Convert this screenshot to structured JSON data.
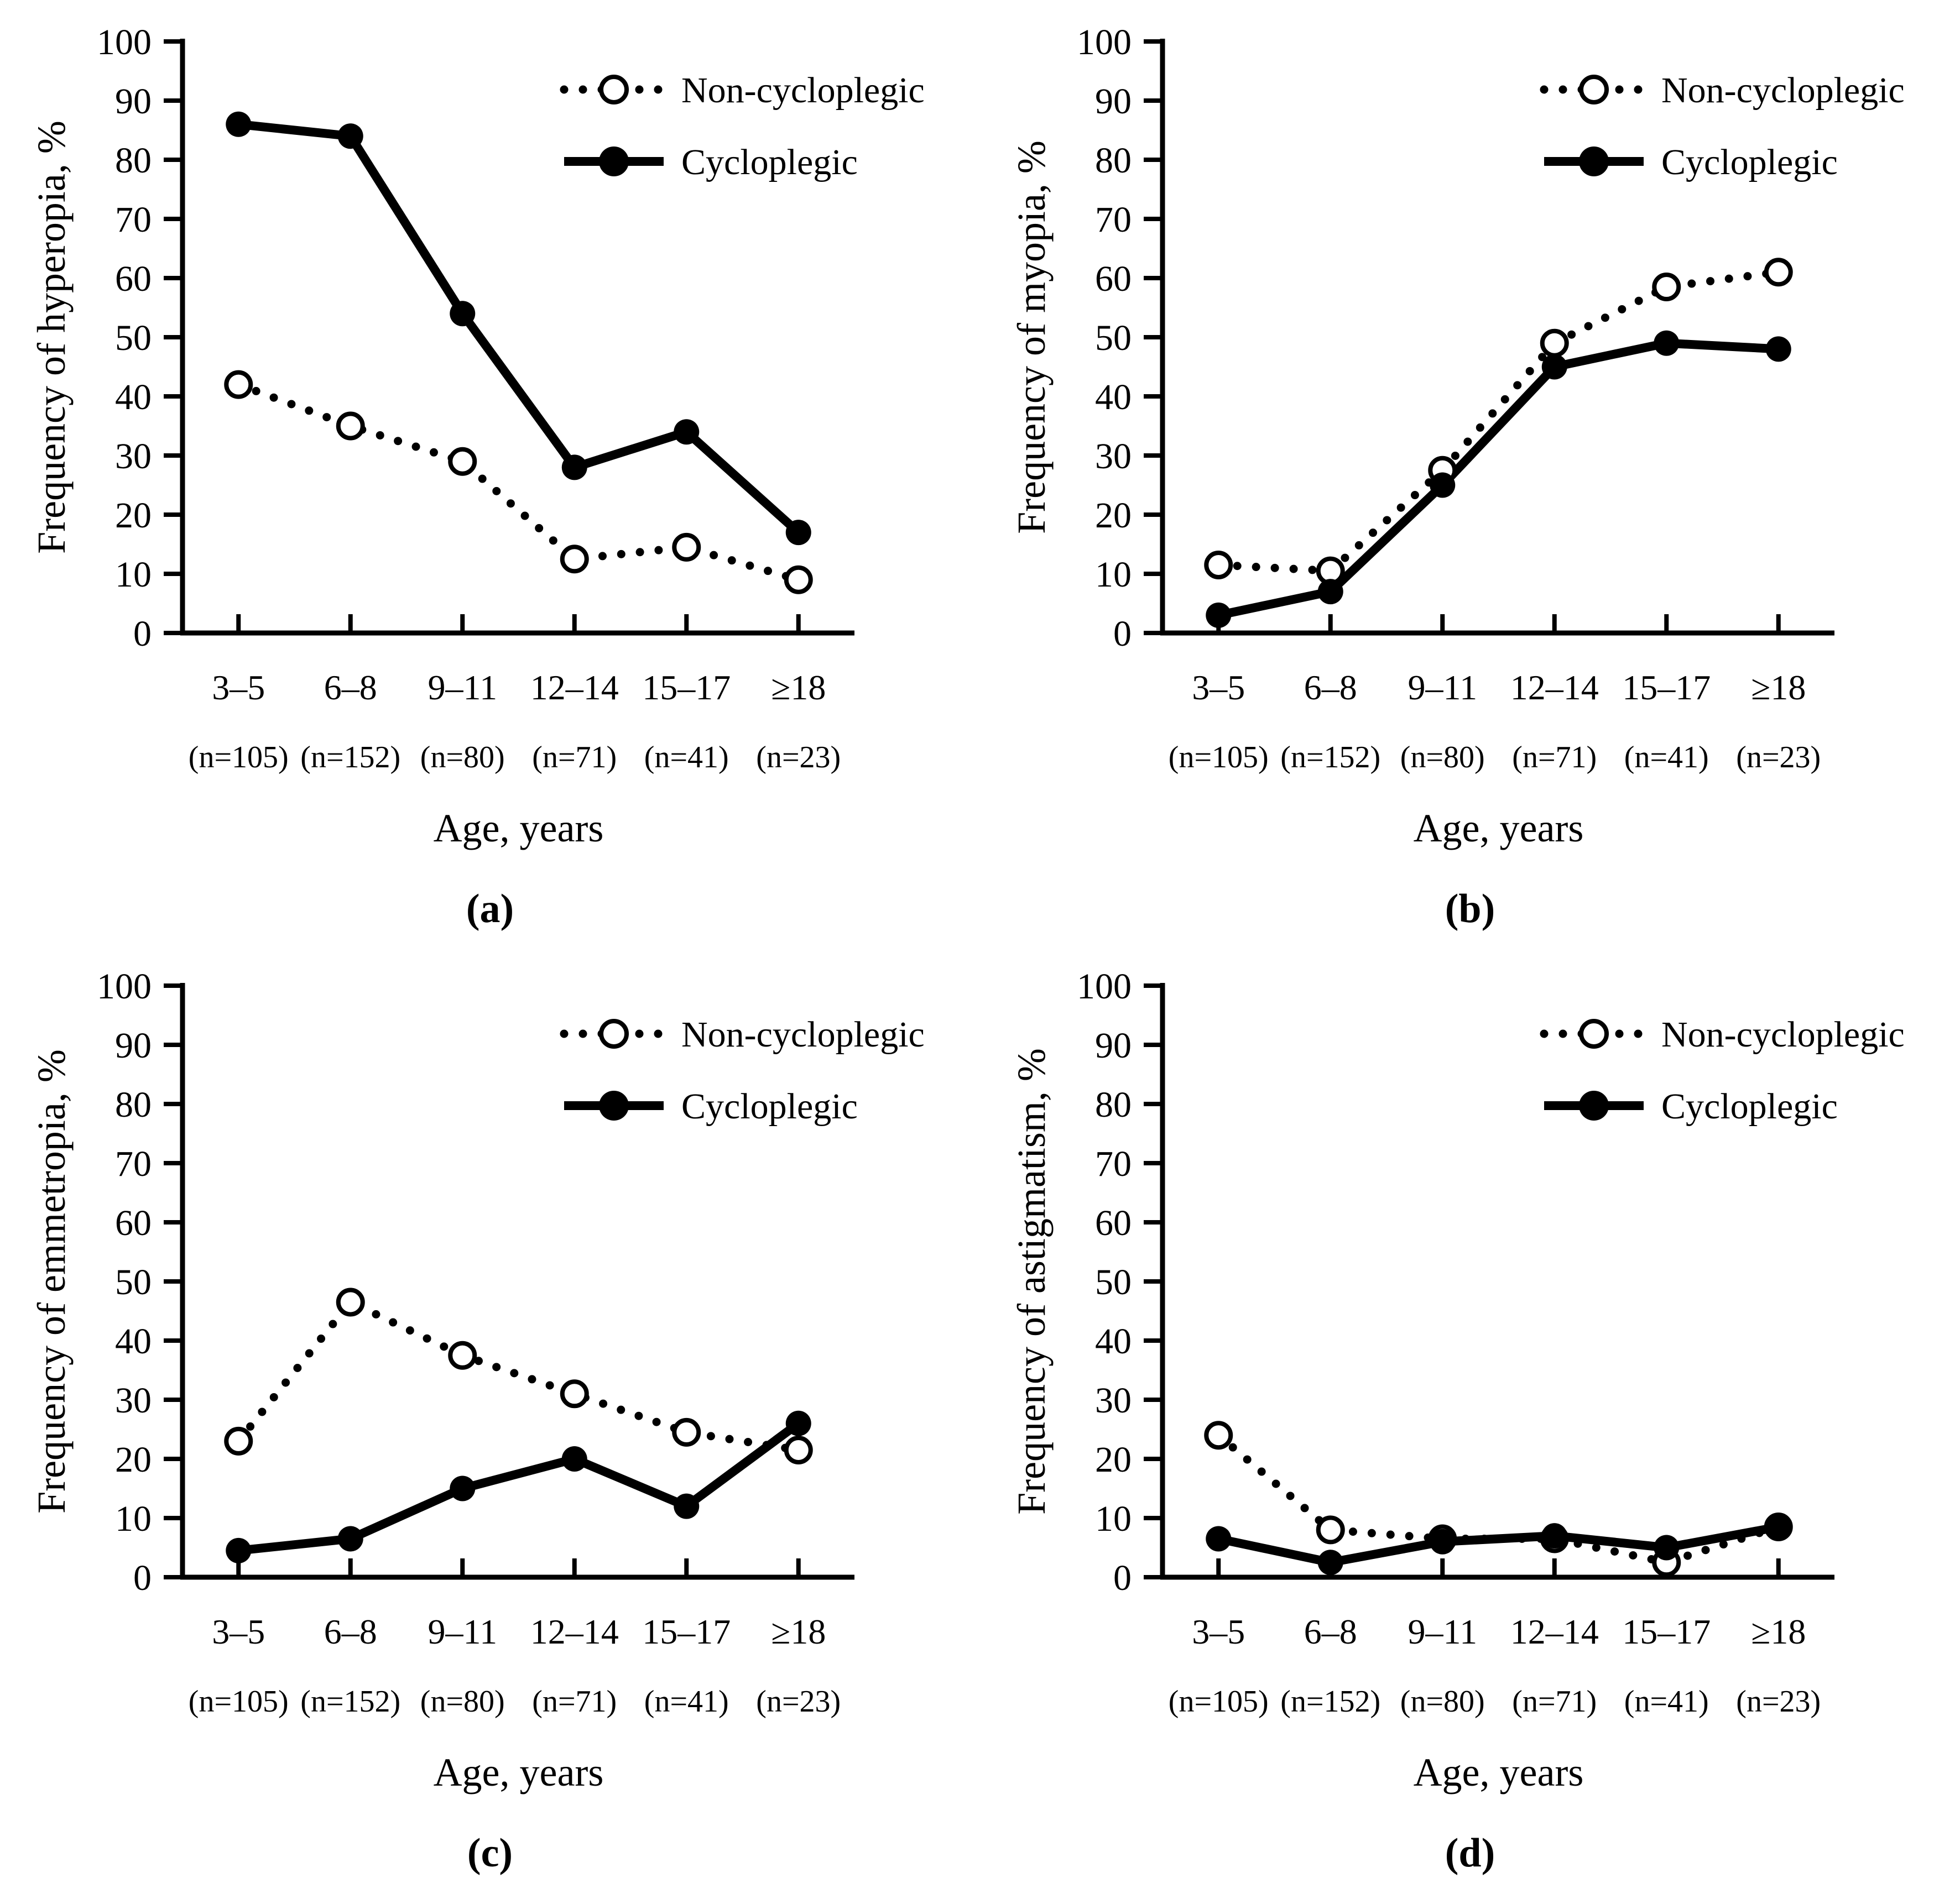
{
  "figure": {
    "background_color": "#ffffff",
    "ink_color": "#000000",
    "panel_labels": [
      "(a)",
      "(b)",
      "(c)",
      "(d)"
    ]
  },
  "legend": {
    "position": "top-right-inside",
    "entries": [
      {
        "label": "Non-cycloplegic",
        "line_style": "dotted",
        "marker": "open-circle"
      },
      {
        "label": "Cycloplegic",
        "line_style": "solid",
        "marker": "filled-circle"
      }
    ]
  },
  "chart_data": [
    {
      "panel_label": "(a)",
      "type": "line",
      "title": "",
      "ylabel": "Frequency of hyperopia, %",
      "xlabel": "Age, years",
      "categories": [
        "3–5",
        "6–8",
        "9–11",
        "12–14",
        "15–17",
        "≥18"
      ],
      "category_counts": [
        "(n=105)",
        "(n=152)",
        "(n=80)",
        "(n=71)",
        "(n=41)",
        "(n=23)"
      ],
      "ylim": [
        0,
        100
      ],
      "yticks": [
        0,
        10,
        20,
        30,
        40,
        50,
        60,
        70,
        80,
        90,
        100
      ],
      "grid": false,
      "legend_position": "top-right",
      "series": [
        {
          "name": "Non-cycloplegic",
          "line_style": "dotted",
          "marker": "open-circle",
          "values": [
            42,
            35,
            29,
            12.5,
            14.5,
            9
          ]
        },
        {
          "name": "Cycloplegic",
          "line_style": "solid",
          "marker": "filled-circle",
          "values": [
            86,
            84,
            54,
            28,
            34,
            17
          ]
        }
      ]
    },
    {
      "panel_label": "(b)",
      "type": "line",
      "title": "",
      "ylabel": "Frequency of myopia, %",
      "xlabel": "Age, years",
      "categories": [
        "3–5",
        "6–8",
        "9–11",
        "12–14",
        "15–17",
        "≥18"
      ],
      "category_counts": [
        "(n=105)",
        "(n=152)",
        "(n=80)",
        "(n=71)",
        "(n=41)",
        "(n=23)"
      ],
      "ylim": [
        0,
        100
      ],
      "yticks": [
        0,
        10,
        20,
        30,
        40,
        50,
        60,
        70,
        80,
        90,
        100
      ],
      "grid": false,
      "legend_position": "top-right",
      "series": [
        {
          "name": "Non-cycloplegic",
          "line_style": "dotted",
          "marker": "open-circle",
          "values": [
            11.5,
            10.5,
            27.5,
            49,
            58.5,
            61
          ]
        },
        {
          "name": "Cycloplegic",
          "line_style": "solid",
          "marker": "filled-circle",
          "values": [
            3,
            7,
            25,
            45,
            49,
            48
          ]
        }
      ]
    },
    {
      "panel_label": "(c)",
      "type": "line",
      "title": "",
      "ylabel": "Frequency of emmetropia, %",
      "xlabel": "Age, years",
      "categories": [
        "3–5",
        "6–8",
        "9–11",
        "12–14",
        "15–17",
        "≥18"
      ],
      "category_counts": [
        "(n=105)",
        "(n=152)",
        "(n=80)",
        "(n=71)",
        "(n=41)",
        "(n=23)"
      ],
      "ylim": [
        0,
        100
      ],
      "yticks": [
        0,
        10,
        20,
        30,
        40,
        50,
        60,
        70,
        80,
        90,
        100
      ],
      "grid": false,
      "legend_position": "top-right",
      "series": [
        {
          "name": "Non-cycloplegic",
          "line_style": "dotted",
          "marker": "open-circle",
          "values": [
            23,
            46.5,
            37.5,
            31,
            24.5,
            21.5
          ]
        },
        {
          "name": "Cycloplegic",
          "line_style": "solid",
          "marker": "filled-circle",
          "values": [
            4.5,
            6.5,
            15,
            20,
            12,
            26
          ]
        }
      ]
    },
    {
      "panel_label": "(d)",
      "type": "line",
      "title": "",
      "ylabel": "Frequency of astigmatism, %",
      "xlabel": "Age, years",
      "categories": [
        "3–5",
        "6–8",
        "9–11",
        "12–14",
        "15–17",
        "≥18"
      ],
      "category_counts": [
        "(n=105)",
        "(n=152)",
        "(n=80)",
        "(n=71)",
        "(n=41)",
        "(n=23)"
      ],
      "ylim": [
        0,
        100
      ],
      "yticks": [
        0,
        10,
        20,
        30,
        40,
        50,
        60,
        70,
        80,
        90,
        100
      ],
      "grid": false,
      "legend_position": "top-right",
      "series": [
        {
          "name": "Non-cycloplegic",
          "line_style": "dotted",
          "marker": "open-circle",
          "values": [
            24,
            8,
            6.5,
            6.5,
            2.5,
            8.5
          ]
        },
        {
          "name": "Cycloplegic",
          "line_style": "solid",
          "marker": "filled-circle",
          "values": [
            6.5,
            2.5,
            6,
            7,
            5,
            8.5
          ]
        }
      ]
    }
  ]
}
